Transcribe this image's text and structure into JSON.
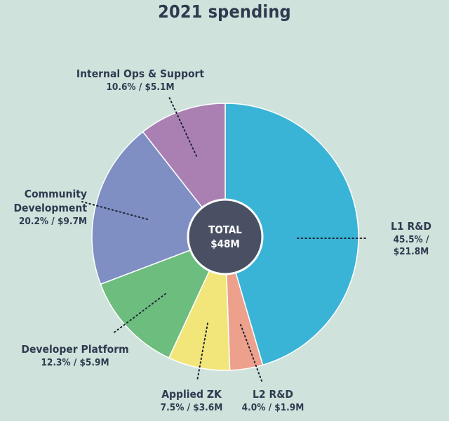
{
  "chart_data": {
    "type": "pie",
    "title": "2021 spending",
    "center_label": {
      "line1": "TOTAL",
      "line2": "$48M"
    },
    "slices": [
      {
        "name": "L1 R&D",
        "percent": 45.5,
        "amount": "$21.8M",
        "value_label": "45.5% / $21.8M",
        "color": "#3ab4d6"
      },
      {
        "name": "L2 R&D",
        "percent": 4.0,
        "amount": "$1.9M",
        "value_label": "4.0% / $1.9M",
        "color": "#eda08c"
      },
      {
        "name": "Applied ZK",
        "percent": 7.5,
        "amount": "$3.6M",
        "value_label": "7.5% / $3.6M",
        "color": "#f2e67a"
      },
      {
        "name": "Developer Platform",
        "percent": 12.3,
        "amount": "$5.9M",
        "value_label": "12.3% / $5.9M",
        "color": "#6cbd7e"
      },
      {
        "name_lines": [
          "Community",
          "Development"
        ],
        "name": "Community Development",
        "percent": 20.2,
        "amount": "$9.7M",
        "value_label": "20.2% / $9.7M",
        "color": "#7f8fc4"
      },
      {
        "name": "Internal Ops & Support",
        "percent": 10.6,
        "amount": "$5.1M",
        "value_label": "10.6% / $5.1M",
        "color": "#aa80b3"
      }
    ],
    "colors": {
      "background": "#cfe2dc",
      "center": "#4a5063",
      "text": "#2f3a4f",
      "slice_border": "#ffffff"
    }
  }
}
